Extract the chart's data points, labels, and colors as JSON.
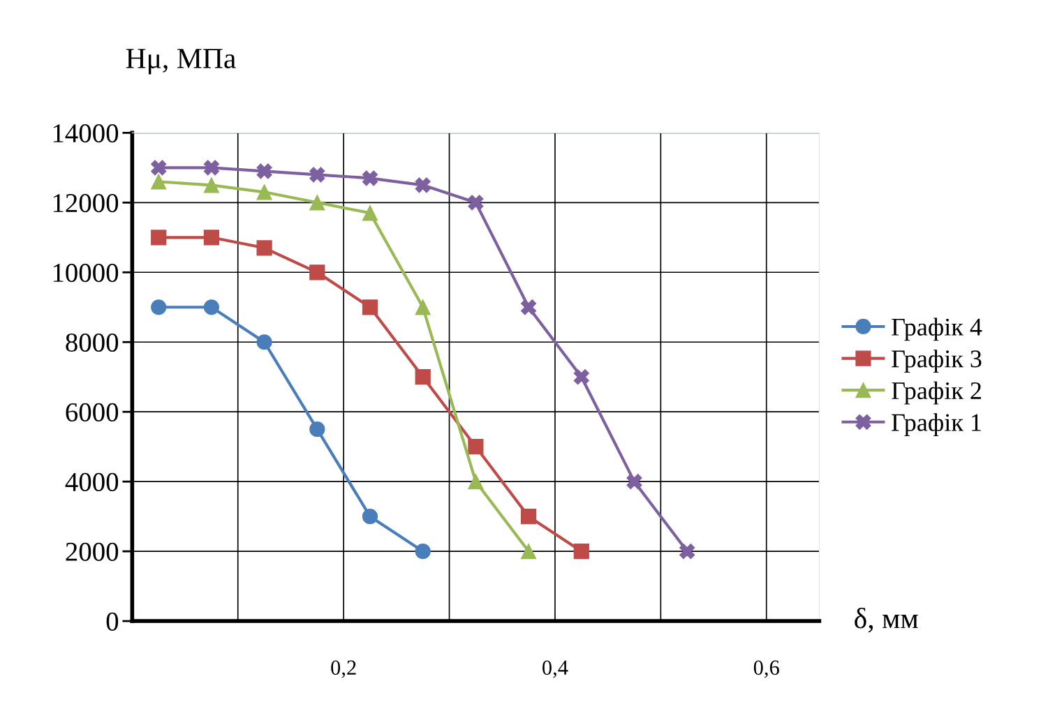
{
  "chart_data": {
    "type": "line",
    "xlabel": "δ, мм",
    "ylabel": "Hμ, МПа",
    "xlim": [
      0,
      0.65
    ],
    "xticks": [
      {
        "value": 0,
        "label": null
      },
      {
        "value": 0.1,
        "label": null
      },
      {
        "value": 0.2,
        "label": "0,2"
      },
      {
        "value": 0.3,
        "label": null
      },
      {
        "value": 0.4,
        "label": "0,4"
      },
      {
        "value": 0.5,
        "label": null
      },
      {
        "value": 0.6,
        "label": "0,6"
      }
    ],
    "ylim": [
      0,
      14000
    ],
    "yticks": [
      0,
      2000,
      4000,
      6000,
      8000,
      10000,
      12000,
      14000
    ],
    "grid": true,
    "legend": "right",
    "line_style": "solid",
    "series": [
      {
        "name": "Графік 4",
        "color": "#4a7ebb",
        "marker": "circle",
        "x": [
          0.025,
          0.075,
          0.125,
          0.175,
          0.225,
          0.275
        ],
        "values": [
          9000,
          9000,
          8000,
          5500,
          3000,
          2000
        ]
      },
      {
        "name": "Графік 3",
        "color": "#be4b48",
        "marker": "square",
        "x": [
          0.025,
          0.075,
          0.125,
          0.175,
          0.225,
          0.275,
          0.325,
          0.375,
          0.425
        ],
        "values": [
          11000,
          11000,
          10700,
          10000,
          9000,
          7000,
          5000,
          3000,
          2000
        ]
      },
      {
        "name": "Графік 2",
        "color": "#98b954",
        "marker": "triangle",
        "x": [
          0.025,
          0.075,
          0.125,
          0.175,
          0.225,
          0.275,
          0.325,
          0.375
        ],
        "values": [
          12600,
          12500,
          12300,
          12000,
          11700,
          9000,
          4000,
          2000
        ]
      },
      {
        "name": "Графік 1",
        "color": "#7d60a0",
        "marker": "cross",
        "x": [
          0.025,
          0.075,
          0.125,
          0.175,
          0.225,
          0.275,
          0.325,
          0.375,
          0.425,
          0.475,
          0.525
        ],
        "values": [
          13000,
          13000,
          12900,
          12800,
          12700,
          12500,
          12000,
          9000,
          7000,
          4000,
          2000
        ]
      }
    ]
  }
}
